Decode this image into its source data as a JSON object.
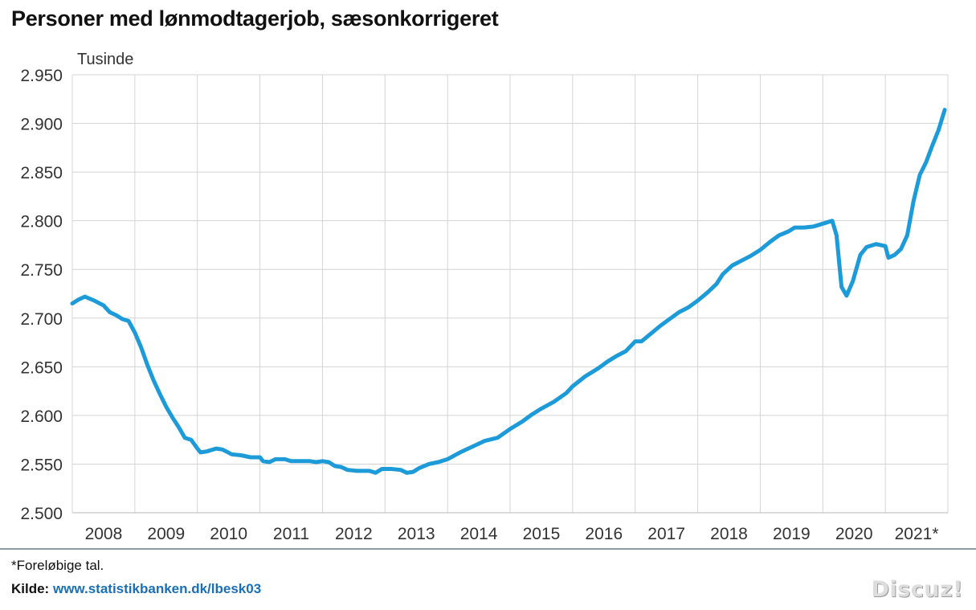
{
  "title": "Personer med lønmodtagerjob, sæsonkorrigeret",
  "footnote": "*Foreløbige tal.",
  "source_label": "Kilde:",
  "source_url": "www.statistikbanken.dk/lbesk03",
  "watermark": "Discuz!",
  "chart_data": {
    "type": "line",
    "title": "Personer med lønmodtagerjob, sæsonkorrigeret",
    "ylabel": "Tusinde",
    "xlabel": "",
    "ylim": [
      2500,
      2950
    ],
    "yticks": [
      2500,
      2550,
      2600,
      2650,
      2700,
      2750,
      2800,
      2850,
      2900,
      2950
    ],
    "ytick_labels": [
      "2.500",
      "2.550",
      "2.600",
      "2.650",
      "2.700",
      "2.750",
      "2.800",
      "2.850",
      "2.900",
      "2.950"
    ],
    "xlim": [
      2008.0,
      2022.0
    ],
    "categories": [
      "2008",
      "2009",
      "2010",
      "2011",
      "2012",
      "2013",
      "2014",
      "2015",
      "2016",
      "2017",
      "2018",
      "2019",
      "2020",
      "2021*"
    ],
    "grid": true,
    "legend": "none",
    "line_color": "#1c9bd8",
    "series": [
      {
        "name": "",
        "points": [
          [
            2008.0,
            2715
          ],
          [
            2008.1,
            2719
          ],
          [
            2008.2,
            2722
          ],
          [
            2008.35,
            2718
          ],
          [
            2008.5,
            2713
          ],
          [
            2008.6,
            2706
          ],
          [
            2008.7,
            2703
          ],
          [
            2008.8,
            2699
          ],
          [
            2008.9,
            2697
          ],
          [
            2009.0,
            2685
          ],
          [
            2009.1,
            2670
          ],
          [
            2009.2,
            2652
          ],
          [
            2009.3,
            2636
          ],
          [
            2009.4,
            2622
          ],
          [
            2009.5,
            2609
          ],
          [
            2009.6,
            2598
          ],
          [
            2009.7,
            2588
          ],
          [
            2009.8,
            2577
          ],
          [
            2009.9,
            2575
          ],
          [
            2010.0,
            2566
          ],
          [
            2010.05,
            2562
          ],
          [
            2010.15,
            2563
          ],
          [
            2010.3,
            2566
          ],
          [
            2010.4,
            2565
          ],
          [
            2010.55,
            2560
          ],
          [
            2010.7,
            2559
          ],
          [
            2010.85,
            2557
          ],
          [
            2011.0,
            2557
          ],
          [
            2011.05,
            2553
          ],
          [
            2011.15,
            2552
          ],
          [
            2011.25,
            2555
          ],
          [
            2011.4,
            2555
          ],
          [
            2011.5,
            2553
          ],
          [
            2011.65,
            2553
          ],
          [
            2011.8,
            2553
          ],
          [
            2011.9,
            2552
          ],
          [
            2012.0,
            2553
          ],
          [
            2012.1,
            2552
          ],
          [
            2012.2,
            2548
          ],
          [
            2012.3,
            2547
          ],
          [
            2012.4,
            2544
          ],
          [
            2012.55,
            2543
          ],
          [
            2012.75,
            2543
          ],
          [
            2012.85,
            2541
          ],
          [
            2012.95,
            2545
          ],
          [
            2013.1,
            2545
          ],
          [
            2013.25,
            2544
          ],
          [
            2013.35,
            2541
          ],
          [
            2013.45,
            2542
          ],
          [
            2013.55,
            2546
          ],
          [
            2013.7,
            2550
          ],
          [
            2013.85,
            2552
          ],
          [
            2014.0,
            2555
          ],
          [
            2014.2,
            2562
          ],
          [
            2014.4,
            2568
          ],
          [
            2014.6,
            2574
          ],
          [
            2014.8,
            2577
          ],
          [
            2015.0,
            2586
          ],
          [
            2015.2,
            2594
          ],
          [
            2015.35,
            2601
          ],
          [
            2015.5,
            2607
          ],
          [
            2015.7,
            2614
          ],
          [
            2015.9,
            2623
          ],
          [
            2016.0,
            2630
          ],
          [
            2016.2,
            2640
          ],
          [
            2016.4,
            2648
          ],
          [
            2016.55,
            2655
          ],
          [
            2016.7,
            2661
          ],
          [
            2016.85,
            2666
          ],
          [
            2017.0,
            2676
          ],
          [
            2017.1,
            2676
          ],
          [
            2017.25,
            2684
          ],
          [
            2017.4,
            2692
          ],
          [
            2017.55,
            2699
          ],
          [
            2017.7,
            2706
          ],
          [
            2017.85,
            2711
          ],
          [
            2018.0,
            2718
          ],
          [
            2018.15,
            2726
          ],
          [
            2018.3,
            2735
          ],
          [
            2018.4,
            2745
          ],
          [
            2018.55,
            2754
          ],
          [
            2018.7,
            2759
          ],
          [
            2018.85,
            2764
          ],
          [
            2019.0,
            2770
          ],
          [
            2019.15,
            2778
          ],
          [
            2019.3,
            2785
          ],
          [
            2019.45,
            2789
          ],
          [
            2019.55,
            2793
          ],
          [
            2019.7,
            2793
          ],
          [
            2019.85,
            2794
          ],
          [
            2020.0,
            2797
          ],
          [
            2020.15,
            2800
          ],
          [
            2020.22,
            2785
          ],
          [
            2020.3,
            2732
          ],
          [
            2020.38,
            2723
          ],
          [
            2020.48,
            2738
          ],
          [
            2020.6,
            2765
          ],
          [
            2020.7,
            2773
          ],
          [
            2020.85,
            2776
          ],
          [
            2021.0,
            2774
          ],
          [
            2021.05,
            2762
          ],
          [
            2021.15,
            2765
          ],
          [
            2021.25,
            2771
          ],
          [
            2021.35,
            2785
          ],
          [
            2021.45,
            2820
          ],
          [
            2021.55,
            2847
          ],
          [
            2021.65,
            2860
          ],
          [
            2021.75,
            2877
          ],
          [
            2021.85,
            2893
          ],
          [
            2021.95,
            2914
          ]
        ]
      }
    ]
  }
}
